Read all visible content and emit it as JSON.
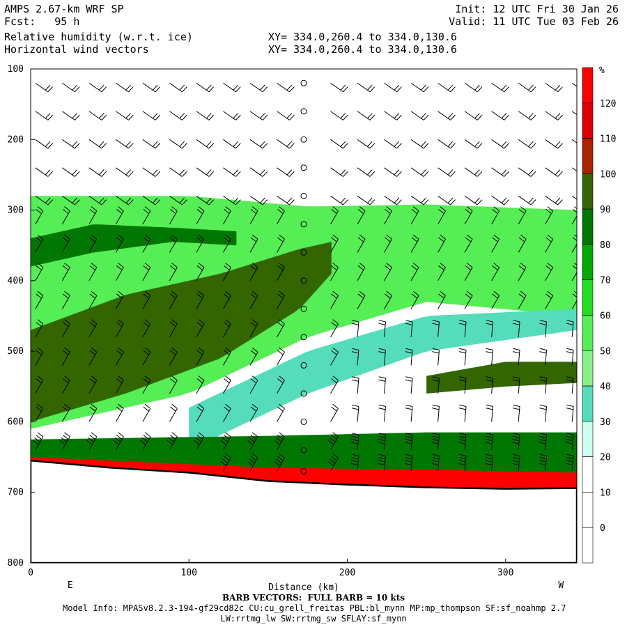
{
  "header": {
    "model": "AMPS 2.67-km WRF SP",
    "fcst_label": "Fcst:",
    "fcst_value": "95 h",
    "field1": "Relative humidity (w.r.t. ice)",
    "field2": "Horizontal wind vectors",
    "xy1": "XY= 334.0,260.4 to 334.0,130.6",
    "xy2": "XY= 334.0,260.4 to 334.0,130.6",
    "init": "Init: 12 UTC Fri 30 Jan 26",
    "valid": "Valid: 11 UTC Tue 03 Feb 26"
  },
  "footer": {
    "barb": "BARB VECTORS:  FULL BARB = 10 kts",
    "model_info": "Model Info: MPASv8.2.3-194-gf29cd82c CU:cu_grell_freitas PBL:bl_mynn MP:mp_thompson SF:sf_noahmp 2.7",
    "model_info2": "LW:rrtmg_lw SW:rrtmg_sw SFLAY:sf_mynn"
  },
  "chart_data": {
    "type": "heatmap",
    "title": "Relative humidity (w.r.t. ice)",
    "xlabel": "Distance (km)",
    "ylabel": "",
    "xlim": [
      0,
      345
    ],
    "ylim": [
      800,
      100
    ],
    "x_ticks": [
      0,
      100,
      200,
      300
    ],
    "y_ticks": [
      100,
      200,
      300,
      400,
      500,
      600,
      700,
      800
    ],
    "x_end_labels": {
      "left": "E",
      "right": "W"
    },
    "colorbar": {
      "unit": "%",
      "levels": [
        0,
        10,
        20,
        30,
        40,
        50,
        60,
        70,
        80,
        90,
        100,
        110,
        120
      ],
      "colors": [
        "#ffffff",
        "#ffffff",
        "#ffffff",
        "#ccffee",
        "#55ddbb",
        "#88ee88",
        "#55ee55",
        "#22dd22",
        "#00aa00",
        "#007700",
        "#336600",
        "#aa2200",
        "#dd0000",
        "#ff0000"
      ]
    },
    "terrain_hpa": [
      [
        0,
        655
      ],
      [
        50,
        665
      ],
      [
        100,
        672
      ],
      [
        150,
        684
      ],
      [
        200,
        689
      ],
      [
        250,
        693
      ],
      [
        300,
        695
      ],
      [
        345,
        694
      ]
    ],
    "rh_layers": [
      {
        "name": "moist layer upper",
        "top": [
          [
            0,
            280
          ],
          [
            100,
            280
          ],
          [
            175,
            295
          ],
          [
            250,
            292
          ],
          [
            345,
            300
          ]
        ],
        "bottom": [
          [
            0,
            610
          ],
          [
            100,
            560
          ],
          [
            175,
            480
          ],
          [
            250,
            430
          ],
          [
            345,
            450
          ]
        ],
        "rh": 50
      },
      {
        "name": "dry slot",
        "top": [
          [
            100,
            580
          ],
          [
            175,
            500
          ],
          [
            250,
            450
          ],
          [
            345,
            440
          ]
        ],
        "bottom": [
          [
            100,
            640
          ],
          [
            175,
            560
          ],
          [
            250,
            500
          ],
          [
            345,
            470
          ]
        ],
        "rh": 30
      },
      {
        "name": "deep moist band",
        "top": [
          [
            0,
            470
          ],
          [
            60,
            420
          ],
          [
            120,
            390
          ],
          [
            170,
            355
          ],
          [
            190,
            345
          ]
        ],
        "bottom": [
          [
            0,
            600
          ],
          [
            60,
            560
          ],
          [
            120,
            510
          ],
          [
            170,
            440
          ],
          [
            190,
            390
          ]
        ],
        "rh": 90
      },
      {
        "name": "upper moist streak",
        "top": [
          [
            0,
            340
          ],
          [
            40,
            320
          ],
          [
            90,
            325
          ],
          [
            130,
            330
          ]
        ],
        "bottom": [
          [
            0,
            380
          ],
          [
            40,
            360
          ],
          [
            90,
            345
          ],
          [
            130,
            350
          ]
        ],
        "rh": 80
      },
      {
        "name": "mid level band east",
        "top": [
          [
            250,
            535
          ],
          [
            300,
            515
          ],
          [
            345,
            515
          ]
        ],
        "bottom": [
          [
            250,
            560
          ],
          [
            300,
            550
          ],
          [
            345,
            545
          ]
        ],
        "rh": 90
      },
      {
        "name": "low level moist",
        "top": [
          [
            0,
            625
          ],
          [
            150,
            620
          ],
          [
            250,
            615
          ],
          [
            345,
            615
          ]
        ],
        "bottom": [
          [
            0,
            655
          ],
          [
            150,
            675
          ],
          [
            250,
            690
          ],
          [
            345,
            694
          ]
        ],
        "rh": 80
      },
      {
        "name": "near surface saturated",
        "top": [
          [
            0,
            650
          ],
          [
            150,
            665
          ],
          [
            250,
            668
          ],
          [
            345,
            672
          ]
        ],
        "bottom": [
          [
            0,
            658
          ],
          [
            150,
            684
          ],
          [
            250,
            693
          ],
          [
            345,
            694
          ]
        ],
        "rh": 120
      }
    ],
    "wind_column_levels_hpa": [
      120,
      160,
      200,
      240,
      280,
      320,
      360,
      400,
      440,
      480,
      520,
      560,
      600,
      640,
      670
    ],
    "calm_column_km": 173
  }
}
